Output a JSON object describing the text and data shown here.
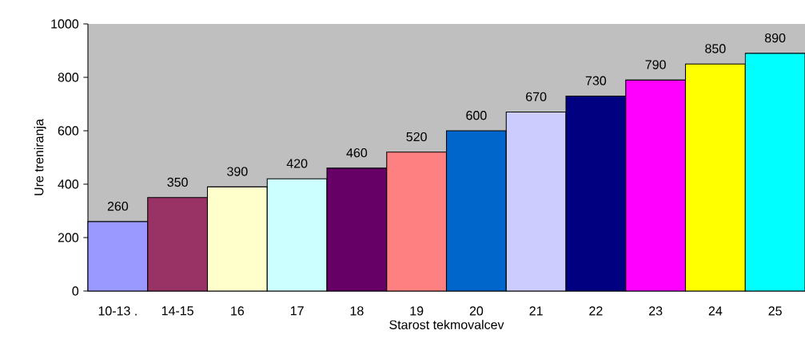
{
  "chart_data": {
    "type": "bar",
    "xlabel": "Starost tekmovalcev",
    "ylabel": "Ure treniranja",
    "categories": [
      "10-13 .",
      "14-15",
      "16",
      "17",
      "18",
      "19",
      "20",
      "21",
      "22",
      "23",
      "24",
      "25"
    ],
    "values": [
      260,
      350,
      390,
      420,
      460,
      520,
      600,
      670,
      730,
      790,
      850,
      890
    ],
    "colors": [
      "#9999ff",
      "#993366",
      "#ffffcc",
      "#ccffff",
      "#660066",
      "#ff8080",
      "#0066cc",
      "#ccccff",
      "#000080",
      "#ff00ff",
      "#ffff00",
      "#00ffff"
    ],
    "ylim": [
      0,
      1000
    ],
    "yticks": [
      0,
      200,
      400,
      600,
      800,
      1000
    ],
    "data_labels": true
  }
}
